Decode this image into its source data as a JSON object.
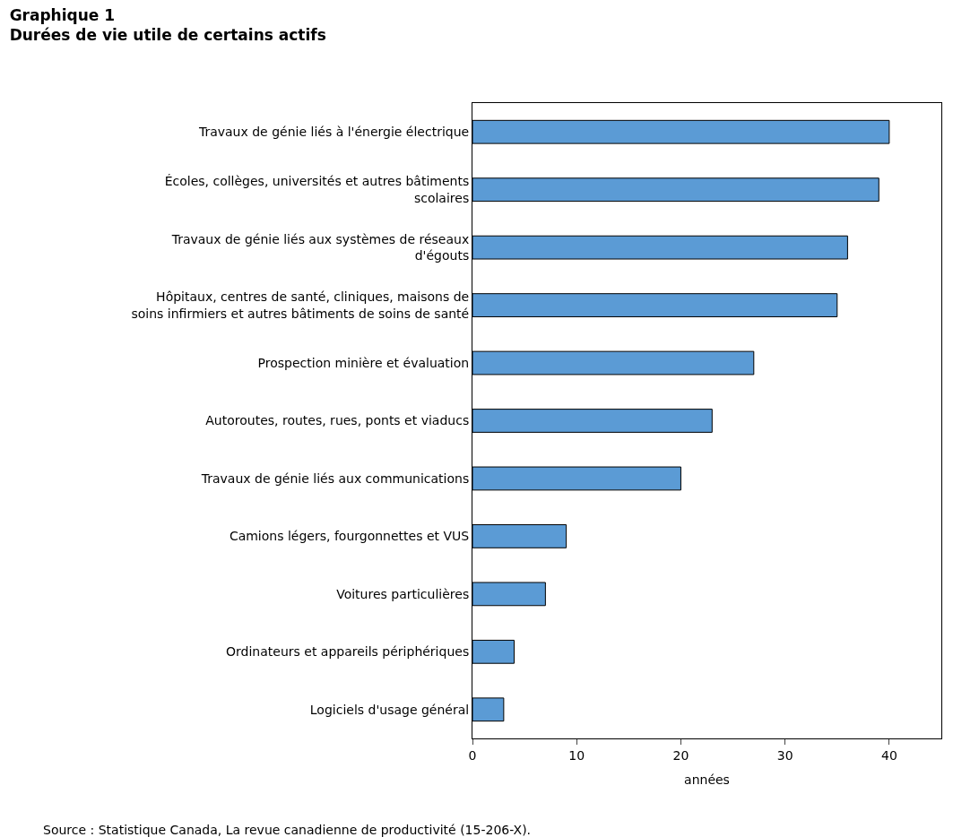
{
  "chart_data": {
    "type": "bar",
    "orientation": "horizontal",
    "title": "Graphique 1",
    "subtitle": "Durées de vie utile de certains actifs",
    "xlabel": "années",
    "categories": [
      "Travaux de génie liés à l'énergie électrique",
      "Écoles, collèges, universités et autres bâtiments scolaires",
      "Travaux de génie liés aux systèmes de réseaux d'égouts",
      "Hôpitaux, centres de santé, cliniques, maisons de soins infirmiers et autres bâtiments de soins de santé",
      "Prospection minière et évaluation",
      "Autoroutes, routes, rues, ponts et viaducs",
      "Travaux de génie liés aux communications",
      "Camions légers, fourgonnettes et VUS",
      "Voitures particulières",
      "Ordinateurs et appareils périphériques",
      "Logiciels d'usage général"
    ],
    "values": [
      40,
      39,
      36,
      35,
      27,
      23,
      20,
      9,
      7,
      4,
      3
    ],
    "color": "#5b9bd5",
    "xlim": [
      0,
      45
    ],
    "xticks": [
      0,
      10,
      20,
      30,
      40
    ],
    "annotations": [
      "Source : Statistique Canada, La revue canadienne de productivité (15-206-X)."
    ]
  }
}
